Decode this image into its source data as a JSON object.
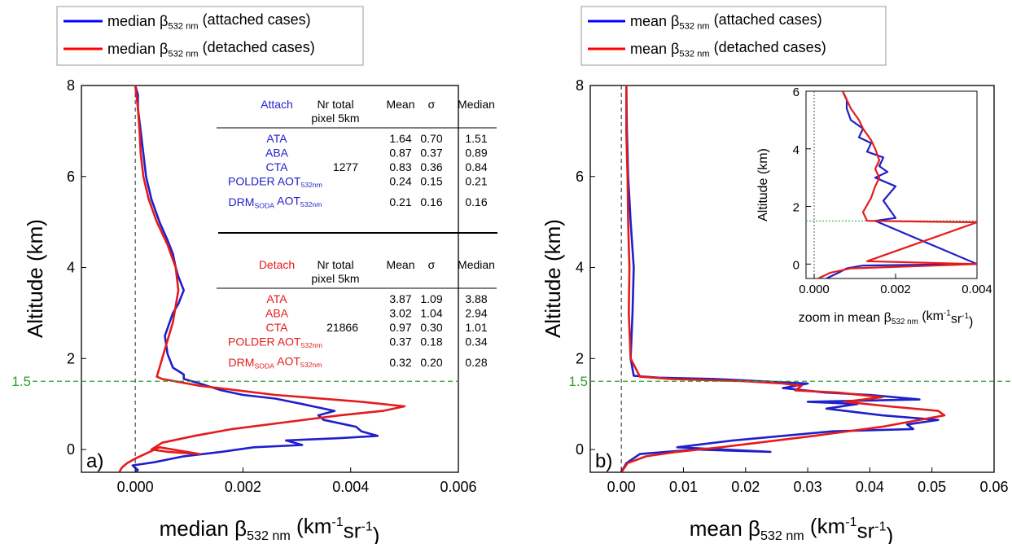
{
  "chart_data": [
    {
      "type": "line",
      "panel_label": "a)",
      "xlabel_main": "median β",
      "xlabel_sub": "532 nm",
      "xlabel_unit": "(km",
      "xlabel_exp1": "-1",
      "xlabel_mid": "sr",
      "xlabel_exp2": "-1",
      "xlabel_end": ")",
      "ylabel": "Altitude (km)",
      "xlim": [
        -0.001,
        0.006
      ],
      "ylim": [
        -0.5,
        8
      ],
      "xticks": [
        "0.000",
        "0.002",
        "0.004",
        "0.006"
      ],
      "xtick_values": [
        0,
        0.002,
        0.004,
        0.006
      ],
      "yticks": [
        "0",
        "2",
        "4",
        "6",
        "8"
      ],
      "ytick_values": [
        0,
        2,
        4,
        6,
        8
      ],
      "hline": {
        "y": 1.5,
        "label": "1.5",
        "color": "#2ca02c"
      },
      "vline": {
        "x": 0
      },
      "legend": [
        {
          "text": "median β",
          "sub": "532 nm",
          "tail": " (attached cases)",
          "color": "#0000ff"
        },
        {
          "text": "median β",
          "sub": "532 nm",
          "tail": " (detached cases)",
          "color": "#ff0000"
        }
      ],
      "series": [
        {
          "name": "median β532 nm (attached cases)",
          "color": "#1f1fcc",
          "x": [
            0.0,
            5e-05,
            -5e-05,
            0.00035,
            0.0009,
            0.0016,
            0.0022,
            0.0031,
            0.0028,
            0.0038,
            0.0045,
            0.0042,
            0.0041,
            0.0039,
            0.0035,
            0.0034,
            0.0037,
            0.0031,
            0.0026,
            0.002,
            0.0016,
            0.0012,
            0.0009,
            0.0009,
            0.0007,
            0.0006,
            0.00055,
            0.0007,
            0.0008,
            0.0009,
            0.0008,
            0.00075,
            0.0007,
            0.0006,
            0.00045,
            0.0003,
            0.0002,
            0.00015,
            0.0001,
            5e-05,
            5e-05,
            0.0
          ],
          "y": [
            -0.5,
            -0.45,
            -0.35,
            -0.28,
            -0.15,
            -0.05,
            0.05,
            0.1,
            0.2,
            0.25,
            0.3,
            0.4,
            0.5,
            0.55,
            0.65,
            0.75,
            0.85,
            1.0,
            1.12,
            1.2,
            1.3,
            1.45,
            1.55,
            1.65,
            1.8,
            2.1,
            2.5,
            3.0,
            3.2,
            3.5,
            3.8,
            4.0,
            4.3,
            4.6,
            5.0,
            5.5,
            6.0,
            6.5,
            7.0,
            7.5,
            7.8,
            8.0
          ]
        },
        {
          "name": "median β532 nm (detached cases)",
          "color": "#e51b1b",
          "x": [
            -0.0003,
            -0.00025,
            -0.00015,
            0.0,
            0.00045,
            0.0012,
            0.0006,
            0.0003,
            0.0005,
            0.0011,
            0.0018,
            0.0028,
            0.0038,
            0.0046,
            0.005,
            0.0042,
            0.0026,
            0.0012,
            0.0005,
            0.0004,
            0.00045,
            0.00055,
            0.0007,
            0.0008,
            0.00075,
            0.0006,
            0.0004,
            0.00025,
            0.00015,
            0.0001,
            8e-05,
            5e-05,
            0.0
          ],
          "y": [
            -0.5,
            -0.4,
            -0.3,
            -0.2,
            0.05,
            -0.1,
            -0.05,
            0.0,
            0.15,
            0.3,
            0.45,
            0.6,
            0.75,
            0.85,
            0.95,
            1.05,
            1.2,
            1.4,
            1.55,
            1.6,
            1.8,
            2.2,
            2.8,
            3.5,
            4.0,
            4.5,
            5.0,
            5.5,
            6.0,
            6.5,
            7.0,
            7.5,
            8.0
          ]
        }
      ],
      "table": {
        "attached": {
          "title": "Attach",
          "headers": [
            "Nr total",
            "pixel 5km",
            "Mean",
            "σ",
            "Median"
          ],
          "rows": [
            {
              "label": "ATA",
              "n": "",
              "mean": "1.64",
              "sigma": "0.70",
              "median": "1.51"
            },
            {
              "label": "ABA",
              "n": "",
              "mean": "0.87",
              "sigma": "0.37",
              "median": "0.89"
            },
            {
              "label": "CTA",
              "n": "1277",
              "mean": "0.83",
              "sigma": "0.36",
              "median": "0.84"
            },
            {
              "label": "POLDER AOT",
              "sub": "532nm",
              "n": "",
              "mean": "0.24",
              "sigma": "0.15",
              "median": "0.21"
            },
            {
              "label": "DRM",
              "sub1": "SODA",
              "label2": " AOT",
              "sub": "532nm",
              "n": "",
              "mean": "0.21",
              "sigma": "0.16",
              "median": "0.16"
            }
          ]
        },
        "detached": {
          "title": "Detach",
          "headers": [
            "Nr total",
            "pixel 5km",
            "Mean",
            "σ",
            "Median"
          ],
          "rows": [
            {
              "label": "ATA",
              "n": "",
              "mean": "3.87",
              "sigma": "1.09",
              "median": "3.88"
            },
            {
              "label": "ABA",
              "n": "",
              "mean": "3.02",
              "sigma": "1.04",
              "median": "2.94"
            },
            {
              "label": "CTA",
              "n": "21866",
              "mean": "0.97",
              "sigma": "0.30",
              "median": "1.01"
            },
            {
              "label": "POLDER AOT",
              "sub": "532nm",
              "n": "",
              "mean": "0.37",
              "sigma": "0.18",
              "median": "0.34"
            },
            {
              "label": "DRM",
              "sub1": "SODA",
              "label2": " AOT",
              "sub": "532nm",
              "n": "",
              "mean": "0.32",
              "sigma": "0.20",
              "median": "0.28"
            }
          ]
        }
      }
    },
    {
      "type": "line",
      "panel_label": "b)",
      "xlabel_main": "mean β",
      "xlabel_sub": "532 nm",
      "xlabel_unit": "(km",
      "xlabel_exp1": "-1",
      "xlabel_mid": "sr",
      "xlabel_exp2": "-1",
      "xlabel_end": ")",
      "ylabel": "Altitude (km)",
      "xlim": [
        -0.005,
        0.06
      ],
      "ylim": [
        -0.5,
        8
      ],
      "xticks": [
        "0.00",
        "0.01",
        "0.02",
        "0.03",
        "0.04",
        "0.05",
        "0.06"
      ],
      "xtick_values": [
        0,
        0.01,
        0.02,
        0.03,
        0.04,
        0.05,
        0.06
      ],
      "yticks": [
        "0",
        "2",
        "4",
        "6",
        "8"
      ],
      "ytick_values": [
        0,
        2,
        4,
        6,
        8
      ],
      "hline": {
        "y": 1.5,
        "label": "1.5",
        "color": "#2ca02c"
      },
      "vline": {
        "x": 0
      },
      "legend": [
        {
          "text": "mean β",
          "sub": "532 nm",
          "tail": " (attached cases)",
          "color": "#0000ff"
        },
        {
          "text": "mean β",
          "sub": "532 nm",
          "tail": " (detached cases)",
          "color": "#ff0000"
        }
      ],
      "series": [
        {
          "name": "mean β532 nm (attached cases)",
          "color": "#1f1fcc",
          "x": [
            0.0,
            0.0008,
            0.003,
            0.012,
            0.024,
            0.009,
            0.018,
            0.034,
            0.047,
            0.046,
            0.051,
            0.042,
            0.036,
            0.033,
            0.038,
            0.03,
            0.048,
            0.04,
            0.033,
            0.026,
            0.03,
            0.015,
            0.006,
            0.002,
            0.0015,
            0.0018,
            0.002,
            0.0015,
            0.0013,
            0.0011,
            0.001,
            0.0009,
            0.0008
          ],
          "y": [
            -0.5,
            -0.3,
            -0.1,
            0.0,
            -0.05,
            0.05,
            0.2,
            0.4,
            0.45,
            0.55,
            0.65,
            0.75,
            0.85,
            0.9,
            1.0,
            1.05,
            1.1,
            1.2,
            1.25,
            1.35,
            1.45,
            1.55,
            1.58,
            1.62,
            2.0,
            3.0,
            4.0,
            5.0,
            5.5,
            6.0,
            6.5,
            7.0,
            8.0
          ]
        },
        {
          "name": "mean β532 nm (detached cases)",
          "color": "#e51b1b",
          "x": [
            0.0,
            0.001,
            0.004,
            0.009,
            0.016,
            0.022,
            0.031,
            0.042,
            0.052,
            0.051,
            0.043,
            0.036,
            0.042,
            0.035,
            0.028,
            0.029,
            0.026,
            0.02,
            0.008,
            0.003,
            0.0015,
            0.0012,
            0.0013,
            0.0011,
            0.001,
            0.0009,
            0.0008,
            0.0008
          ],
          "y": [
            -0.5,
            -0.3,
            -0.15,
            -0.05,
            0.05,
            0.15,
            0.3,
            0.5,
            0.75,
            0.85,
            0.95,
            1.05,
            1.15,
            1.25,
            1.3,
            1.4,
            1.45,
            1.5,
            1.55,
            1.6,
            2.0,
            3.0,
            4.0,
            5.0,
            6.0,
            6.5,
            7.0,
            8.0
          ]
        }
      ],
      "inset": {
        "ylabel": "Altitude (km)",
        "xlabel_main": "zoom in mean β",
        "xlabel_sub": "532 nm",
        "xlabel_unit": " (km",
        "xlabel_exp1": "-1",
        "xlabel_mid": "sr",
        "xlabel_exp2": "-1",
        "xlabel_end": ")",
        "xlim": [
          -0.0002,
          0.004
        ],
        "ylim": [
          -0.5,
          6
        ],
        "xticks": [
          "0.000",
          "0.002",
          "0.004"
        ],
        "xtick_values": [
          0,
          0.002,
          0.004
        ],
        "yticks": [
          "0",
          "2",
          "4",
          "6"
        ],
        "ytick_values": [
          0,
          2,
          4,
          6
        ],
        "hline": {
          "y": 1.5
        },
        "vline": {
          "x": 0
        },
        "series": [
          {
            "name": "attached",
            "color": "#1f1fcc",
            "x": [
              0.0003,
              0.0006,
              0.0008,
              0.0012,
              0.004,
              0.0015,
              0.002,
              0.0019,
              0.0017,
              0.002,
              0.0015,
              0.0018,
              0.0016,
              0.0017,
              0.0013,
              0.0014,
              0.0011,
              0.0012,
              0.0009,
              0.0008,
              0.0008,
              0.0007
            ],
            "y": [
              -0.5,
              -0.3,
              -0.15,
              -0.05,
              0.0,
              1.5,
              1.6,
              1.8,
              2.2,
              2.7,
              3.0,
              3.2,
              3.4,
              3.7,
              3.9,
              4.2,
              4.4,
              4.7,
              5.0,
              5.4,
              5.7,
              6.0
            ]
          },
          {
            "name": "detached",
            "color": "#e51b1b",
            "x": [
              0.0001,
              0.0004,
              0.0009,
              0.004,
              0.0013,
              0.004,
              0.0013,
              0.0012,
              0.0014,
              0.0015,
              0.0016,
              0.0015,
              0.0016,
              0.0015,
              0.0014,
              0.0012,
              0.0011,
              0.0009,
              0.0008,
              0.0007
            ],
            "y": [
              -0.5,
              -0.3,
              -0.15,
              0.0,
              0.1,
              1.45,
              1.5,
              1.8,
              2.3,
              2.7,
              3.0,
              3.3,
              3.6,
              4.0,
              4.3,
              4.7,
              5.0,
              5.4,
              5.7,
              6.0
            ]
          }
        ]
      }
    }
  ]
}
